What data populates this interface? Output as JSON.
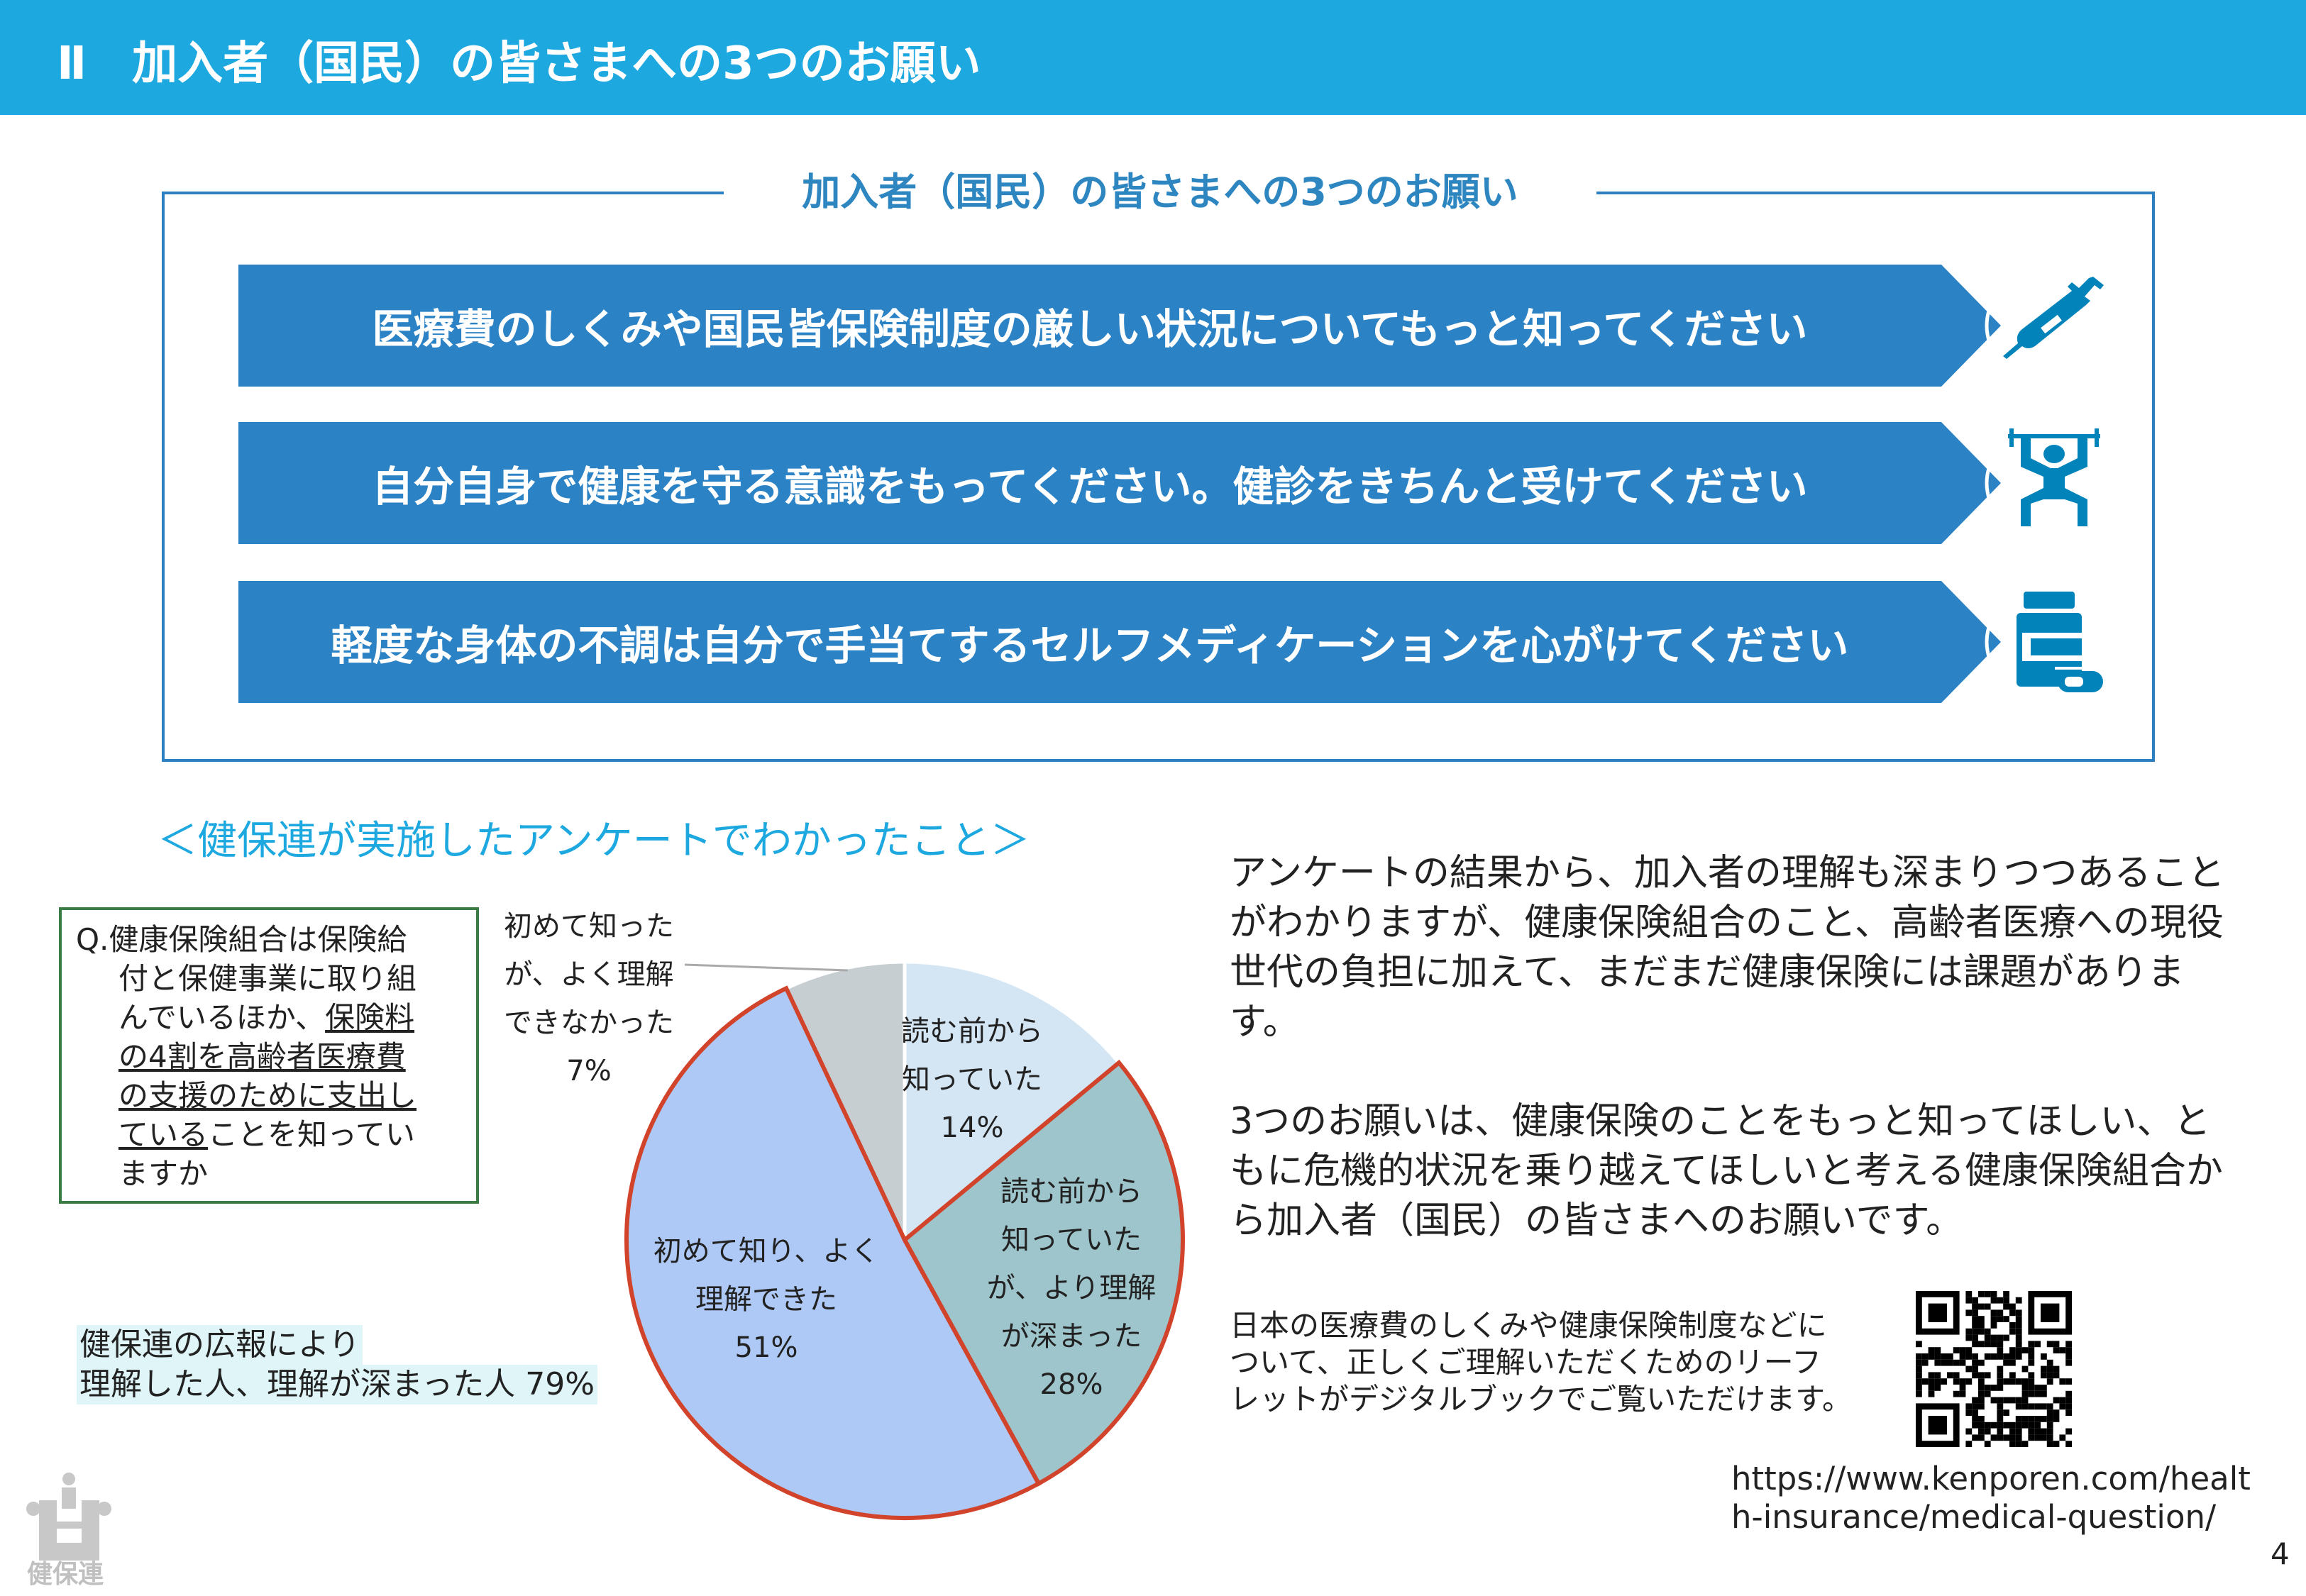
{
  "header": {
    "title": "Ⅱ　加入者（国民）の皆さまへの3つのお願い"
  },
  "requests_box": {
    "title": "加入者（国民）の皆さまへの3つのお願い",
    "items": [
      {
        "text": "医療費のしくみや国民皆保険制度の厳しい状況についてもっと知ってください",
        "icon": "syringe-icon"
      },
      {
        "text": "自分自身で健康を守る意識をもってください。健診をきちんと受けてください",
        "icon": "weightlifter-icon"
      },
      {
        "text": "軽度な身体の不調は自分で手当てするセルフメディケーションを心がけてください",
        "icon": "medicine-bottle-icon"
      }
    ],
    "arrow_color": "#2b82c5",
    "icon_color": "#0284bb"
  },
  "survey": {
    "heading": "＜健保連が実施したアンケートでわかったこと＞",
    "question": {
      "line1": "Q.健康保険組合は保険給",
      "line2": "付と保健事業に取り組",
      "line3a": "んでいるほか、",
      "line3b": "保険料",
      "line4": "の4割を高齢者医療費",
      "line5": "の支援のために支出し",
      "line6a": "ている",
      "line6b": "ことを知ってい",
      "line7": "ますか"
    },
    "highlight": {
      "line1": "健保連の広報により",
      "line2": "理解した人、理解が深まった人 79%"
    }
  },
  "chart_data": {
    "type": "pie",
    "start": "top",
    "direction": "clockwise",
    "slices": [
      {
        "label_lines": [
          "読む前から",
          "知っていた"
        ],
        "value": 14,
        "display": "14%",
        "color": "#d4e6f4",
        "outlined": false
      },
      {
        "label_lines": [
          "読む前から",
          "知っていた",
          "が、より理解",
          "が深まった"
        ],
        "value": 28,
        "display": "28%",
        "color": "#9ec5cb",
        "outlined": true
      },
      {
        "label_lines": [
          "初めて知り、よく",
          "理解できた"
        ],
        "value": 51,
        "display": "51%",
        "color": "#aec9f5",
        "outlined": true
      },
      {
        "label_lines": [
          "初めて知った",
          "が、よく理解",
          "できなかった"
        ],
        "value": 7,
        "display": "7%",
        "color": "#c7ced2",
        "outlined": false
      }
    ],
    "outline_color": "#d2432b"
  },
  "right": {
    "para1": "アンケートの結果から、加入者の理解も深まりつつあることがわかりますが、健康保険組合のこと、高齢者医療への現役世代の負担に加えて、まだまだ健康保険には課題があります。",
    "para2": "3つのお願いは、健康保険のことをもっと知ってほしい、ともに危機的状況を乗り越えてほしいと考える健康保険組合から加入者（国民）の皆さまへのお願いです。",
    "small": [
      "日本の医療費のしくみや健康保険制度などに",
      "ついて、正しくご理解いただくためのリーフ",
      "レットがデジタルブックでご覧いただけます。"
    ],
    "url": [
      "https://www.kenporen.com/healt",
      "h-insurance/medical-question/"
    ]
  },
  "footer": {
    "logo_text": "健保連",
    "page": "4"
  }
}
